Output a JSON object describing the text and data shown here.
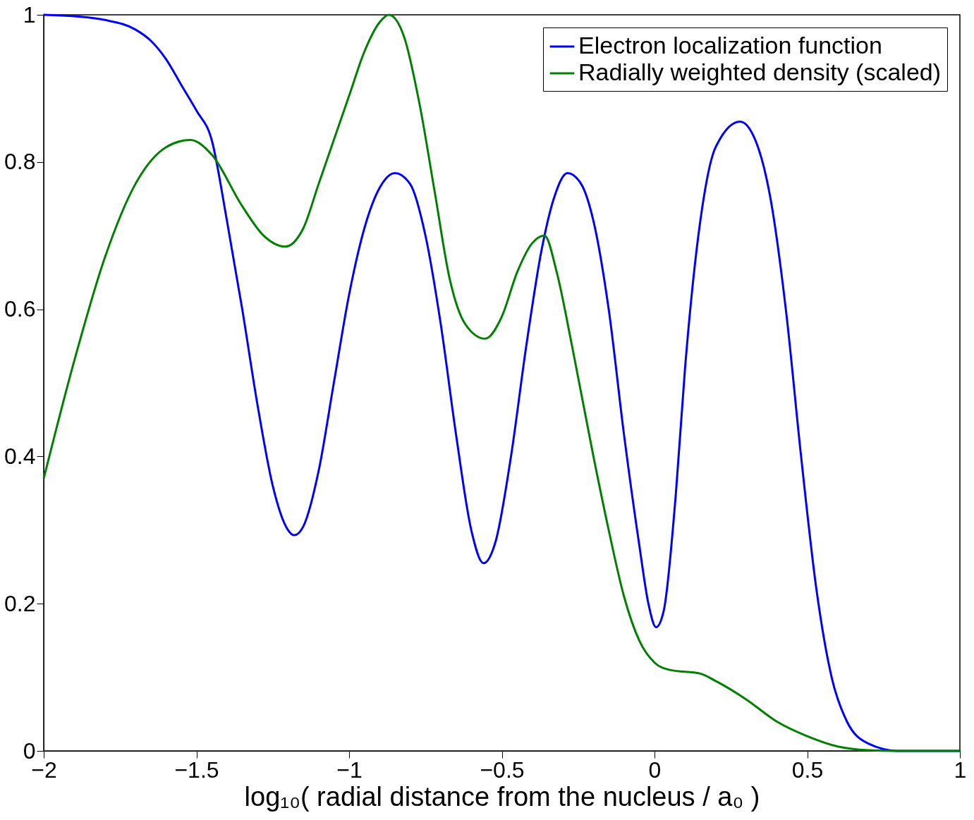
{
  "chart_data": {
    "type": "line",
    "xlabel": "log₁₀( radial distance from the nucleus / a₀ )",
    "xlim": [
      -2,
      1
    ],
    "ylim": [
      0,
      1
    ],
    "xticks": [
      -2,
      -1.5,
      -1,
      -0.5,
      0,
      0.5,
      1
    ],
    "yticks": [
      0,
      0.2,
      0.4,
      0.6,
      0.8,
      1
    ],
    "grid": false,
    "legend": "top right",
    "line_style": "solid",
    "marker": "none",
    "series": [
      {
        "name": "Electron localization function",
        "color": "#0000ff",
        "x": [
          -2,
          -1.9,
          -1.8,
          -1.7,
          -1.65,
          -1.6,
          -1.55,
          -1.5,
          -1.45,
          -1.4,
          -1.35,
          -1.3,
          -1.25,
          -1.2,
          -1.18,
          -1.15,
          -1.1,
          -1.05,
          -1.0,
          -0.95,
          -0.9,
          -0.85,
          -0.8,
          -0.75,
          -0.7,
          -0.65,
          -0.6,
          -0.56,
          -0.52,
          -0.47,
          -0.42,
          -0.37,
          -0.33,
          -0.285,
          -0.24,
          -0.2,
          -0.15,
          -0.1,
          -0.05,
          -0.02,
          0.005,
          0.03,
          0.07,
          0.1,
          0.15,
          0.2,
          0.28,
          0.33,
          0.38,
          0.43,
          0.48,
          0.53,
          0.58,
          0.63,
          0.7,
          0.8,
          1.0
        ],
        "values": [
          1.0,
          0.998,
          0.993,
          0.98,
          0.965,
          0.94,
          0.905,
          0.87,
          0.83,
          0.72,
          0.6,
          0.47,
          0.36,
          0.3,
          0.293,
          0.305,
          0.38,
          0.5,
          0.62,
          0.71,
          0.765,
          0.785,
          0.77,
          0.7,
          0.58,
          0.43,
          0.3,
          0.255,
          0.285,
          0.4,
          0.55,
          0.68,
          0.75,
          0.785,
          0.77,
          0.72,
          0.6,
          0.43,
          0.28,
          0.2,
          0.168,
          0.19,
          0.35,
          0.52,
          0.72,
          0.82,
          0.855,
          0.83,
          0.75,
          0.6,
          0.4,
          0.22,
          0.1,
          0.04,
          0.01,
          0.0,
          0.0
        ]
      },
      {
        "name": "Radially weighted density (scaled)",
        "color": "#008000",
        "x": [
          -2,
          -1.9,
          -1.8,
          -1.7,
          -1.6,
          -1.52,
          -1.45,
          -1.35,
          -1.28,
          -1.21,
          -1.15,
          -1.1,
          -1.0,
          -0.95,
          -0.9,
          -0.87,
          -0.82,
          -0.77,
          -0.72,
          -0.67,
          -0.62,
          -0.555,
          -0.5,
          -0.45,
          -0.4,
          -0.36,
          -0.32,
          -0.27,
          -0.2,
          -0.15,
          -0.1,
          -0.05,
          0,
          0.05,
          0.15,
          0.2,
          0.3,
          0.4,
          0.5,
          0.6,
          0.7,
          0.8,
          1.0
        ],
        "values": [
          0.37,
          0.53,
          0.67,
          0.77,
          0.82,
          0.83,
          0.81,
          0.74,
          0.7,
          0.685,
          0.71,
          0.77,
          0.89,
          0.95,
          0.99,
          1.0,
          0.97,
          0.88,
          0.76,
          0.64,
          0.58,
          0.56,
          0.59,
          0.65,
          0.69,
          0.7,
          0.65,
          0.55,
          0.4,
          0.3,
          0.21,
          0.15,
          0.12,
          0.11,
          0.105,
          0.095,
          0.07,
          0.04,
          0.02,
          0.006,
          0.001,
          0.0,
          0.0
        ]
      }
    ]
  }
}
